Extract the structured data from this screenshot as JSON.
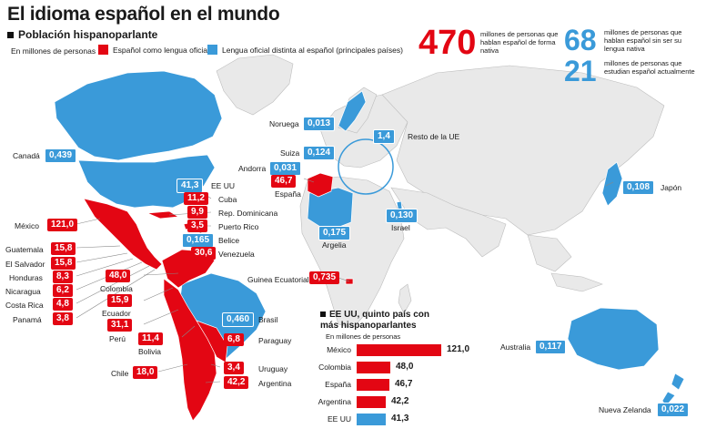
{
  "title": "El idioma español en el mundo",
  "subtitle": "Población hispanoparlante",
  "units": "En millones de personas",
  "legend": {
    "official": "Español como lengua oficial",
    "other": "Lengua oficial distinta al español (principales países)",
    "official_color": "#e30613",
    "other_color": "#3a9ad9"
  },
  "stats": {
    "native_num": "470",
    "native_text": "millones de personas que hablan español de forma nativa",
    "nonnative_num": "68",
    "nonnative_text": "millones de personas que hablan español sin ser su lengua nativa",
    "students_num": "21",
    "students_text": "millones de personas que estudian español actualmente"
  },
  "labels": {
    "canada": {
      "name": "Canadá",
      "value": "0,439"
    },
    "eeuu": {
      "name": "EE UU",
      "value": "41,3"
    },
    "cuba": {
      "name": "Cuba",
      "value": "11,2"
    },
    "rep_dominicana": {
      "name": "Rep. Dominicana",
      "value": "9,9"
    },
    "puerto_rico": {
      "name": "Puerto Rico",
      "value": "3,5"
    },
    "belice": {
      "name": "Belice",
      "value": "0,165"
    },
    "venezuela": {
      "name": "Venezuela",
      "value": "30,6"
    },
    "mexico": {
      "name": "México",
      "value": "121,0"
    },
    "guatemala": {
      "name": "Guatemala",
      "value": "15,8"
    },
    "el_salvador": {
      "name": "El Salvador",
      "value": "15,8"
    },
    "honduras": {
      "name": "Honduras",
      "value": "8,3"
    },
    "nicaragua": {
      "name": "Nicaragua",
      "value": "6,2"
    },
    "costa_rica": {
      "name": "Costa Rica",
      "value": "4,8"
    },
    "panama": {
      "name": "Panamá",
      "value": "3,8"
    },
    "colombia": {
      "name": "Colombia",
      "value": "48,0"
    },
    "ecuador": {
      "name": "Ecuador",
      "value": "15,9"
    },
    "peru": {
      "name": "Perú",
      "value": "31,1"
    },
    "bolivia": {
      "name": "Bolivia",
      "value": "11,4"
    },
    "brasil": {
      "name": "Brasil",
      "value": "0,460"
    },
    "paraguay": {
      "name": "Paraguay",
      "value": "6,8"
    },
    "chile": {
      "name": "Chile",
      "value": "18,0"
    },
    "uruguay": {
      "name": "Uruguay",
      "value": "3,4"
    },
    "argentina": {
      "name": "Argentina",
      "value": "42,2"
    },
    "noruega": {
      "name": "Noruega",
      "value": "0,013"
    },
    "resto_ue": {
      "name": "Resto de la UE",
      "value": "1,4"
    },
    "suiza": {
      "name": "Suiza",
      "value": "0,124"
    },
    "andorra": {
      "name": "Andorra",
      "value": "0,031"
    },
    "espana": {
      "name": "España",
      "value": "46,7"
    },
    "argelia": {
      "name": "Argelia",
      "value": "0,175"
    },
    "israel": {
      "name": "Israel",
      "value": "0,130"
    },
    "japon": {
      "name": "Japón",
      "value": "0,108"
    },
    "guinea": {
      "name": "Guinea Ecuatorial",
      "value": "0,735"
    },
    "australia": {
      "name": "Australia",
      "value": "0,117"
    },
    "nueva_zelanda": {
      "name": "Nueva Zelanda",
      "value": "0,022"
    }
  },
  "chart_data": {
    "type": "bar",
    "title": "EE UU, quinto país con más hispanoparlantes",
    "units": "En millones de personas",
    "categories": [
      "México",
      "Colombia",
      "España",
      "Argentina",
      "EE UU"
    ],
    "values": [
      121.0,
      48.0,
      46.7,
      42.2,
      41.3
    ],
    "value_labels": [
      "121,0",
      "48,0",
      "46,7",
      "42,2",
      "41,3"
    ],
    "colors": [
      "#e30613",
      "#e30613",
      "#e30613",
      "#e30613",
      "#3a9ad9"
    ]
  }
}
